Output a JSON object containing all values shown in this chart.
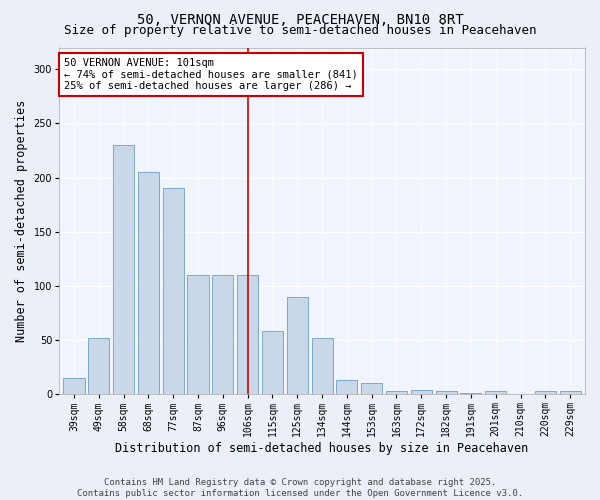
{
  "title": "50, VERNON AVENUE, PEACEHAVEN, BN10 8RT",
  "subtitle": "Size of property relative to semi-detached houses in Peacehaven",
  "xlabel": "Distribution of semi-detached houses by size in Peacehaven",
  "ylabel": "Number of semi-detached properties",
  "categories": [
    "39sqm",
    "49sqm",
    "58sqm",
    "68sqm",
    "77sqm",
    "87sqm",
    "96sqm",
    "106sqm",
    "115sqm",
    "125sqm",
    "134sqm",
    "144sqm",
    "153sqm",
    "163sqm",
    "172sqm",
    "182sqm",
    "191sqm",
    "201sqm",
    "210sqm",
    "220sqm",
    "229sqm"
  ],
  "values": [
    15,
    52,
    230,
    205,
    190,
    110,
    110,
    110,
    58,
    90,
    52,
    13,
    10,
    3,
    4,
    3,
    1,
    3,
    0,
    3,
    3
  ],
  "bar_color": "#c8d8e8",
  "bar_edge_color": "#7aaac8",
  "highlight_line_color": "#cc0000",
  "annotation_text": "50 VERNON AVENUE: 101sqm\n← 74% of semi-detached houses are smaller (841)\n25% of semi-detached houses are larger (286) →",
  "annotation_box_color": "white",
  "annotation_box_edge_color": "#cc0000",
  "ylim": [
    0,
    320
  ],
  "yticks": [
    0,
    50,
    100,
    150,
    200,
    250,
    300
  ],
  "footer_line1": "Contains HM Land Registry data © Crown copyright and database right 2025.",
  "footer_line2": "Contains public sector information licensed under the Open Government Licence v3.0.",
  "bg_color": "#eaeff8",
  "plot_bg_color": "#f0f4fc",
  "title_fontsize": 10,
  "subtitle_fontsize": 9,
  "axis_label_fontsize": 8.5,
  "tick_fontsize": 7,
  "footer_fontsize": 6.5,
  "annotation_fontsize": 7.5,
  "highlight_line_xindex": 7
}
